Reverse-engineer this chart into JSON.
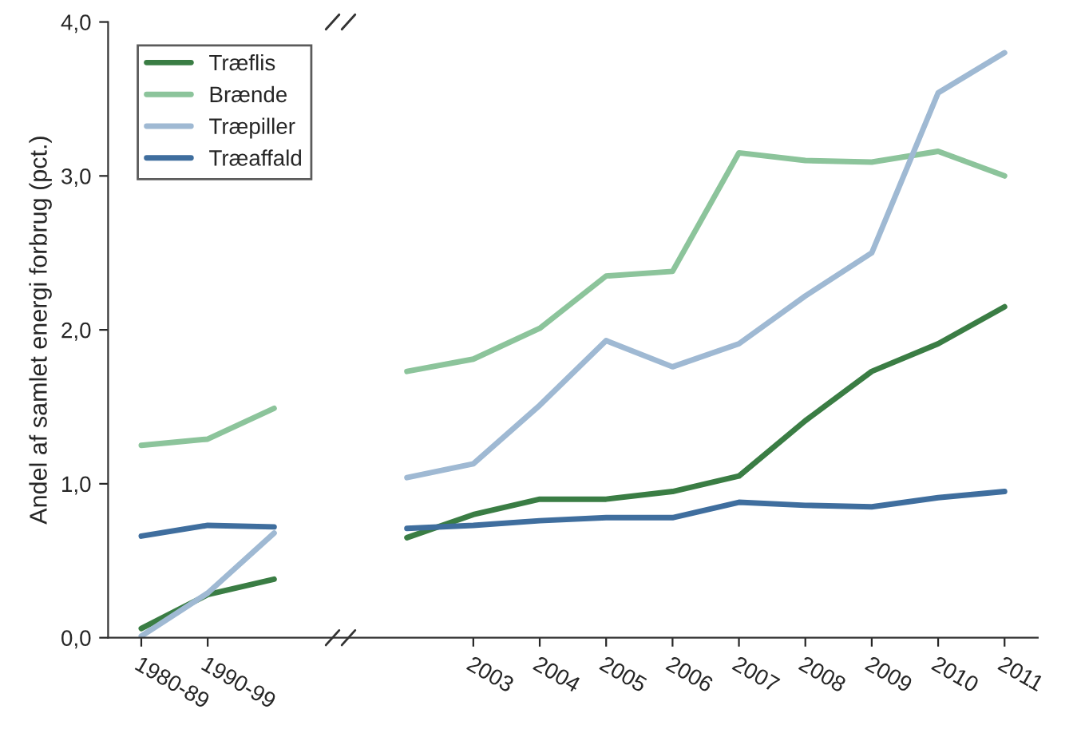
{
  "chart_data": {
    "type": "line",
    "ylabel": "Andel af samlet energi forbrug (pct.)",
    "categories": [
      "1980-89",
      "1990-99",
      null,
      null,
      null,
      "2003",
      "2004",
      "2005",
      "2006",
      "2007",
      "2008",
      "2009",
      "2010",
      "2011"
    ],
    "series": [
      {
        "name": "Træflis",
        "color": "#3a7d44",
        "values": [
          0.06,
          0.28,
          0.38,
          null,
          0.65,
          0.8,
          0.9,
          0.9,
          0.95,
          1.05,
          1.41,
          1.73,
          1.91,
          2.15
        ]
      },
      {
        "name": "Brænde",
        "color": "#8cc49b",
        "values": [
          1.25,
          1.29,
          1.49,
          null,
          1.73,
          1.81,
          2.01,
          2.35,
          2.38,
          3.15,
          3.1,
          3.09,
          3.16,
          3.0
        ]
      },
      {
        "name": "Træpiller",
        "color": "#9fb9d3",
        "values": [
          0.01,
          0.29,
          0.68,
          null,
          1.04,
          1.13,
          1.51,
          1.93,
          1.76,
          1.91,
          2.22,
          2.5,
          3.54,
          3.8
        ]
      },
      {
        "name": "Træaffald",
        "color": "#3f6e9e",
        "values": [
          0.66,
          0.73,
          0.72,
          null,
          0.71,
          0.73,
          0.76,
          0.78,
          0.78,
          0.88,
          0.86,
          0.85,
          0.91,
          0.95
        ]
      }
    ],
    "ylim": [
      0,
      4
    ],
    "yticks": [
      {
        "value": 0,
        "label": "0,0"
      },
      {
        "value": 1,
        "label": "1,0"
      },
      {
        "value": 2,
        "label": "2,0"
      },
      {
        "value": 3,
        "label": "3,0"
      },
      {
        "value": 4,
        "label": "4,0"
      }
    ],
    "legend": "top left",
    "grid": false,
    "marker": "none",
    "line_style": "solid"
  }
}
